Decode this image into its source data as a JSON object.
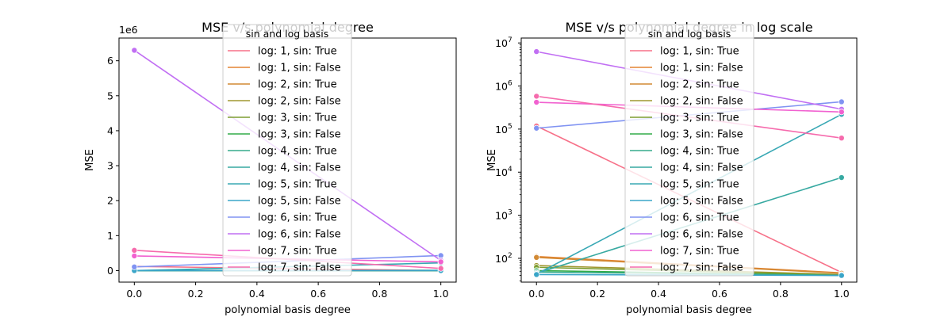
{
  "chart_data": [
    {
      "type": "line",
      "title": "MSE v/s polynomial degree",
      "xlabel": "polynomial basis degree",
      "ylabel": "MSE",
      "yscale": "linear",
      "offset_label": "1e6",
      "xlim": [
        -0.05,
        1.05
      ],
      "ylim": [
        -330000,
        6650000
      ],
      "xticks": [
        0.0,
        0.2,
        0.4,
        0.6,
        0.8,
        1.0
      ],
      "xtick_labels": [
        "0.0",
        "0.2",
        "0.4",
        "0.6",
        "0.8",
        "1.0"
      ],
      "yticks": [
        0,
        1000000,
        2000000,
        3000000,
        4000000,
        5000000,
        6000000
      ],
      "ytick_labels": [
        "0",
        "1",
        "2",
        "3",
        "4",
        "5",
        "6"
      ],
      "grid": false,
      "legend": {
        "title": "sin and log basis",
        "placement": "upper-center"
      }
    },
    {
      "type": "line",
      "title": "MSE v/s polynomial degree in log scale",
      "xlabel": "polynomial basis degree",
      "ylabel": "MSE",
      "yscale": "log",
      "xlim": [
        -0.05,
        1.05
      ],
      "ylim": [
        28,
        13000000
      ],
      "xticks": [
        0.0,
        0.2,
        0.4,
        0.6,
        0.8,
        1.0
      ],
      "xtick_labels": [
        "0.0",
        "0.2",
        "0.4",
        "0.6",
        "0.8",
        "1.0"
      ],
      "yticks": [
        100,
        1000,
        10000,
        100000,
        1000000,
        10000000
      ],
      "ytick_base": "10",
      "ytick_exponents": [
        "2",
        "3",
        "4",
        "5",
        "6",
        "7"
      ],
      "grid": false,
      "legend": {
        "title": "sin and log basis",
        "placement": "upper-center"
      }
    }
  ],
  "series": [
    {
      "name": "log: 1, sin: True",
      "color": "#f77189",
      "x": [
        0,
        1
      ],
      "y": [
        118000,
        47
      ]
    },
    {
      "name": "log: 1, sin: False",
      "color": "#e48332",
      "x": [
        0,
        1
      ],
      "y": [
        110,
        46
      ]
    },
    {
      "name": "log: 2, sin: True",
      "color": "#d28a34",
      "x": [
        0,
        1
      ],
      "y": [
        105,
        45
      ]
    },
    {
      "name": "log: 2, sin: False",
      "color": "#a09731",
      "x": [
        0,
        1
      ],
      "y": [
        68,
        42
      ]
    },
    {
      "name": "log: 3, sin: True",
      "color": "#7d9e31",
      "x": [
        0,
        1
      ],
      "y": [
        62,
        41
      ]
    },
    {
      "name": "log: 3, sin: False",
      "color": "#32ab48",
      "x": [
        0,
        1
      ],
      "y": [
        52,
        40
      ]
    },
    {
      "name": "log: 4, sin: True",
      "color": "#35ab8c",
      "x": [
        0,
        1
      ],
      "y": [
        48,
        40
      ]
    },
    {
      "name": "log: 4, sin: False",
      "color": "#37a9a1",
      "x": [
        0,
        1
      ],
      "y": [
        45,
        7500
      ]
    },
    {
      "name": "log: 5, sin: True",
      "color": "#38a8b4",
      "x": [
        0,
        1
      ],
      "y": [
        43,
        220000
      ]
    },
    {
      "name": "log: 5, sin: False",
      "color": "#3aa5c8",
      "x": [
        0,
        1
      ],
      "y": [
        42,
        40
      ]
    },
    {
      "name": "log: 6, sin: True",
      "color": "#8093f2",
      "x": [
        0,
        1
      ],
      "y": [
        105000,
        430000
      ]
    },
    {
      "name": "log: 6, sin: False",
      "color": "#c16ff3",
      "x": [
        0,
        1
      ],
      "y": [
        6300000,
        290000
      ]
    },
    {
      "name": "log: 7, sin: True",
      "color": "#f161d0",
      "x": [
        0,
        1
      ],
      "y": [
        420000,
        250000
      ]
    },
    {
      "name": "log: 7, sin: False",
      "color": "#f66bad",
      "x": [
        0,
        1
      ],
      "y": [
        580000,
        62000
      ]
    }
  ]
}
